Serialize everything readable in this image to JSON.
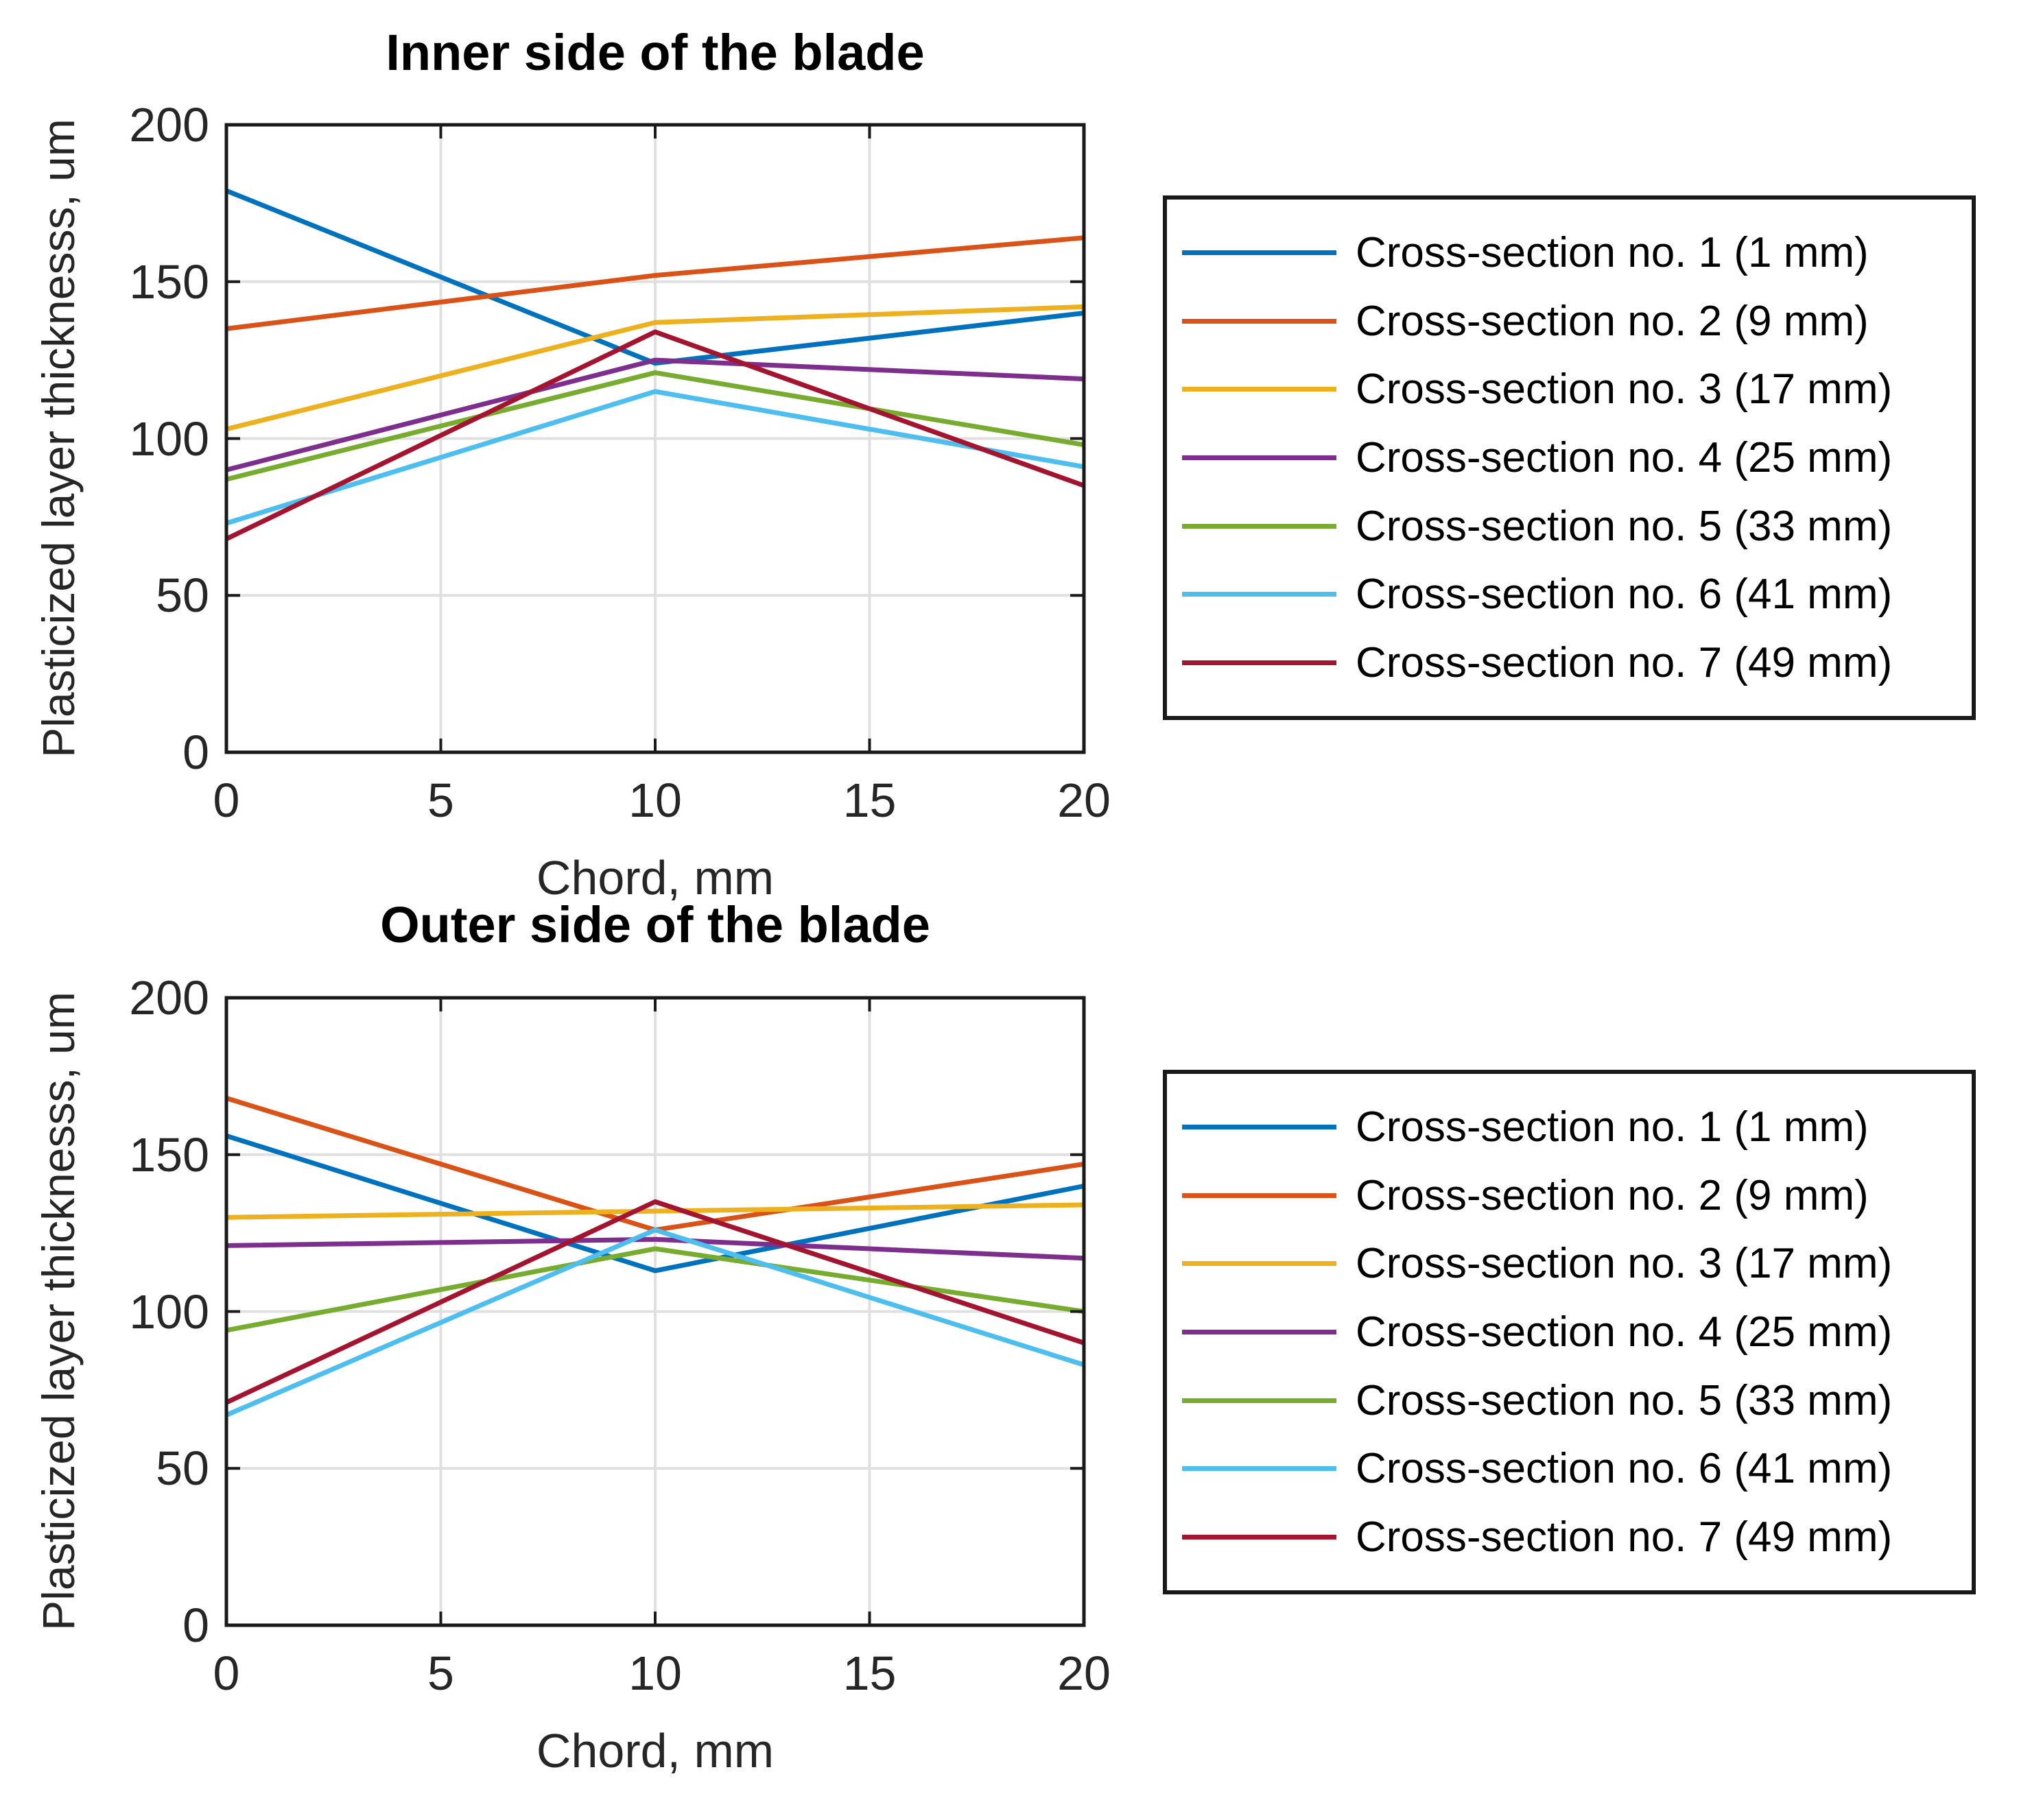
{
  "figure": {
    "background": "#ffffff",
    "axis_color": "#262626",
    "box_color": "#1a1a1a",
    "grid_color": "#e0e0e0"
  },
  "chart_data": [
    {
      "type": "line",
      "title": "Inner side of the blade",
      "xlabel": "Chord, mm",
      "ylabel": "Plasticized layer thicknesss, um",
      "x": [
        0,
        10,
        20
      ],
      "xlim": [
        0,
        20
      ],
      "ylim": [
        0,
        200
      ],
      "xticks": [
        0,
        5,
        10,
        15,
        20
      ],
      "yticks": [
        0,
        50,
        100,
        150,
        200
      ],
      "grid": true,
      "legend_position": "right-of-plot",
      "series": [
        {
          "name": "Cross-section no. 1 (1 mm)",
          "color": "#0072BD",
          "values": [
            179,
            124,
            140
          ]
        },
        {
          "name": "Cross-section no. 2 (9 mm)",
          "color": "#D95319",
          "values": [
            135,
            152,
            164
          ]
        },
        {
          "name": "Cross-section no. 3 (17 mm)",
          "color": "#EDB120",
          "values": [
            103,
            137,
            142
          ]
        },
        {
          "name": "Cross-section no. 4 (25 mm)",
          "color": "#7E2F8E",
          "values": [
            90,
            125,
            119
          ]
        },
        {
          "name": "Cross-section no. 5 (33 mm)",
          "color": "#77AC30",
          "values": [
            87,
            121,
            98
          ]
        },
        {
          "name": "Cross-section no. 6 (41 mm)",
          "color": "#4DBEEE",
          "values": [
            73,
            115,
            91
          ]
        },
        {
          "name": "Cross-section no. 7 (49 mm)",
          "color": "#A2142F",
          "values": [
            68,
            134,
            85
          ]
        }
      ]
    },
    {
      "type": "line",
      "title": "Outer side of the blade",
      "xlabel": "Chord, mm",
      "ylabel": "Plasticized layer thicknesss, um",
      "x": [
        0,
        10,
        20
      ],
      "xlim": [
        0,
        20
      ],
      "ylim": [
        0,
        200
      ],
      "xticks": [
        0,
        5,
        10,
        15,
        20
      ],
      "yticks": [
        0,
        50,
        100,
        150,
        200
      ],
      "grid": true,
      "legend_position": "right-of-plot",
      "series": [
        {
          "name": "Cross-section no. 1 (1 mm)",
          "color": "#0072BD",
          "values": [
            156,
            113,
            140
          ]
        },
        {
          "name": "Cross-section no. 2 (9 mm)",
          "color": "#D95319",
          "values": [
            168,
            126,
            147
          ]
        },
        {
          "name": "Cross-section no. 3 (17 mm)",
          "color": "#EDB120",
          "values": [
            130,
            132,
            134
          ]
        },
        {
          "name": "Cross-section no. 4 (25 mm)",
          "color": "#7E2F8E",
          "values": [
            121,
            123,
            117
          ]
        },
        {
          "name": "Cross-section no. 5 (33 mm)",
          "color": "#77AC30",
          "values": [
            94,
            120,
            100
          ]
        },
        {
          "name": "Cross-section no. 6 (41 mm)",
          "color": "#4DBEEE",
          "values": [
            67,
            126,
            83
          ]
        },
        {
          "name": "Cross-section no. 7 (49 mm)",
          "color": "#A2142F",
          "values": [
            71,
            135,
            90
          ]
        }
      ]
    }
  ]
}
